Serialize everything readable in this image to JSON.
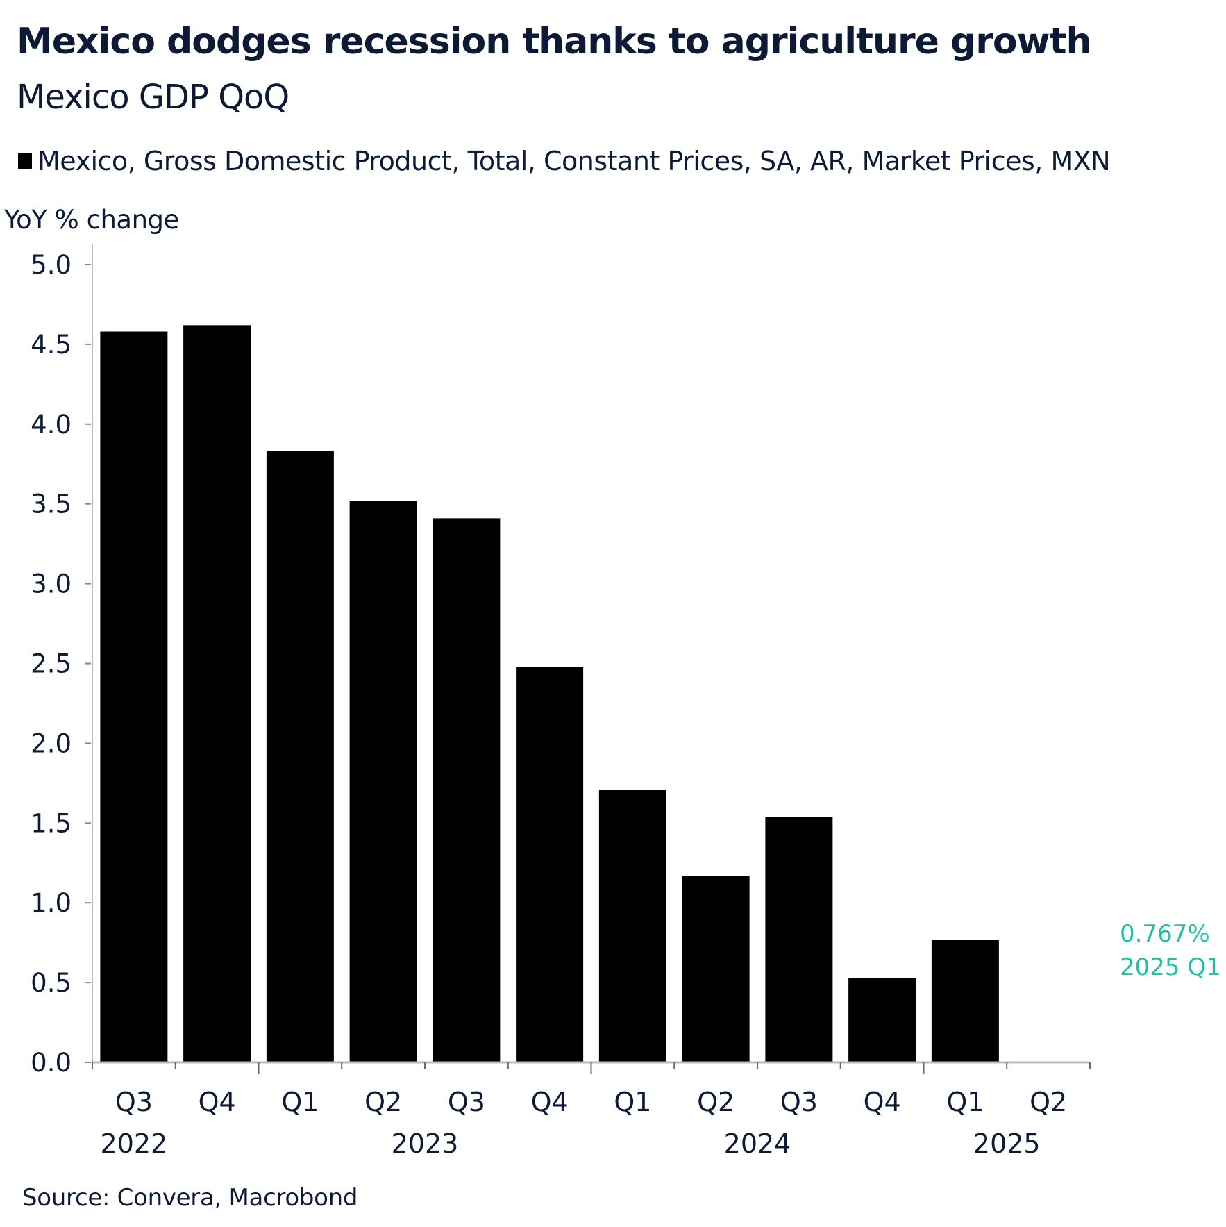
{
  "title": "Mexico dodges recession thanks to agriculture growth",
  "subtitle": "Mexico GDP QoQ",
  "source": "Source: Convera, Macrobond",
  "colors": {
    "text": "#0c1a36",
    "bar": "#000000",
    "annotation": "#1fc1a6",
    "axis": "#bbbbbb"
  },
  "chart_data": {
    "type": "bar",
    "title": "Mexico dodges recession thanks to agriculture growth",
    "subtitle": "Mexico GDP QoQ",
    "ylabel": "YoY % change",
    "xlabel": "",
    "ylim": [
      0,
      5.0
    ],
    "yticks": [
      "0.0",
      "0.5",
      "1.0",
      "1.5",
      "2.0",
      "2.5",
      "3.0",
      "3.5",
      "4.0",
      "4.5",
      "5.0"
    ],
    "legend": {
      "position": "top-left",
      "entries": [
        "Mexico, Gross Domestic Product, Total, Constant Prices, SA, AR, Market Prices, MXN"
      ]
    },
    "categories": [
      "Q3",
      "Q4",
      "Q1",
      "Q2",
      "Q3",
      "Q4",
      "Q1",
      "Q2",
      "Q3",
      "Q4",
      "Q1",
      "Q2"
    ],
    "years": [
      {
        "label": "2022",
        "center_category_index": 0
      },
      {
        "label": "2023",
        "center_category_index": 3.5
      },
      {
        "label": "2024",
        "center_category_index": 7.5
      },
      {
        "label": "2025",
        "center_category_index": 10.5
      }
    ],
    "series": [
      {
        "name": "Mexico, Gross Domestic Product, Total, Constant Prices, SA, AR, Market Prices, MXN",
        "values": [
          4.58,
          4.62,
          3.83,
          3.52,
          3.41,
          2.48,
          1.71,
          1.17,
          1.54,
          0.53,
          0.767,
          null
        ]
      }
    ],
    "annotation": {
      "value": "0.767%",
      "period": "2025 Q1"
    },
    "grid": false
  }
}
